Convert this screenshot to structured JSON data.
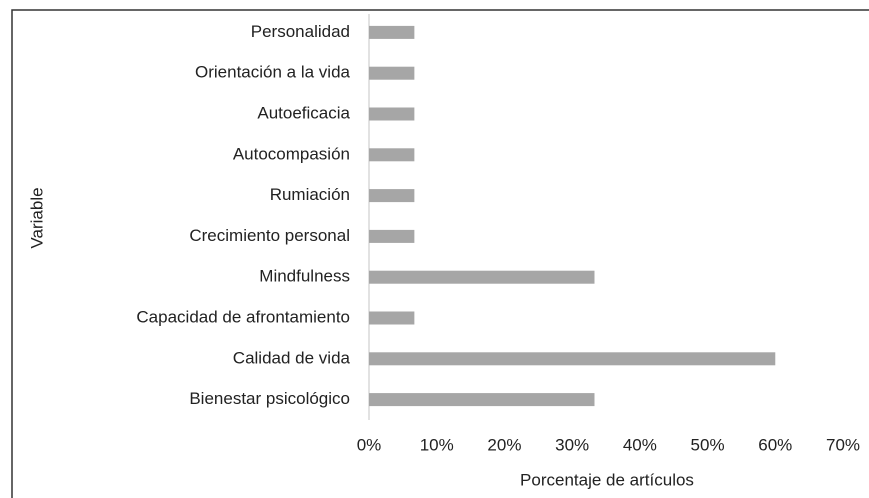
{
  "chart_data": {
    "type": "barh",
    "categories": [
      "Personalidad",
      "Orientación a la vida",
      "Autoeficacia",
      "Autocompasión",
      "Rumiación",
      "Crecimiento personal",
      "Mindfulness",
      "Capacidad de afrontamiento",
      "Calidad de vida",
      "Bienestar psicológico"
    ],
    "values": [
      6.7,
      6.7,
      6.7,
      6.7,
      6.7,
      6.7,
      33.3,
      6.7,
      60,
      33.3
    ],
    "color": "#a6a6a6",
    "xlabel": "Porcentaje de artículos",
    "ylabel": "Variable",
    "xlim": [
      0,
      70
    ],
    "xticks": [
      {
        "value": 0,
        "label": "0%"
      },
      {
        "value": 10,
        "label": "10%"
      },
      {
        "value": 20,
        "label": "20%"
      },
      {
        "value": 30,
        "label": "30%"
      },
      {
        "value": 40,
        "label": "40%"
      },
      {
        "value": 50,
        "label": "50%"
      },
      {
        "value": 60,
        "label": "60%"
      },
      {
        "value": 70,
        "label": "70%"
      }
    ],
    "grid": false
  }
}
